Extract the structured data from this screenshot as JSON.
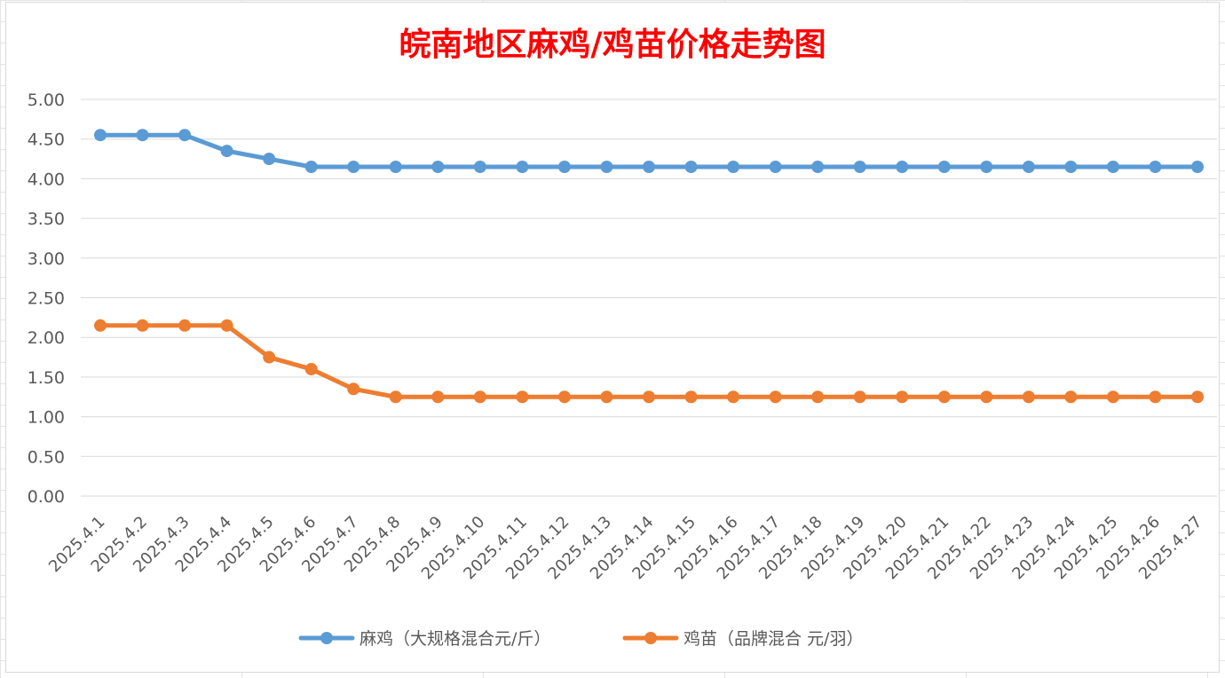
{
  "chart_data": {
    "type": "line",
    "title": "皖南地区麻鸡/鸡苗价格走势图",
    "xlabel": "",
    "ylabel": "",
    "ylim": [
      0,
      5
    ],
    "y_ticks": [
      "0.00",
      "0.50",
      "1.00",
      "1.50",
      "2.00",
      "2.50",
      "3.00",
      "3.50",
      "4.00",
      "4.50",
      "5.00"
    ],
    "grid": true,
    "legend_position": "bottom",
    "categories": [
      "2025.4.1",
      "2025.4.2",
      "2025.4.3",
      "2025.4.4",
      "2025.4.5",
      "2025.4.6",
      "2025.4.7",
      "2025.4.8",
      "2025.4.9",
      "2025.4.10",
      "2025.4.11",
      "2025.4.12",
      "2025.4.13",
      "2025.4.14",
      "2025.4.15",
      "2025.4.16",
      "2025.4.17",
      "2025.4.18",
      "2025.4.19",
      "2025.4.20",
      "2025.4.21",
      "2025.4.22",
      "2025.4.23",
      "2025.4.24",
      "2025.4.25",
      "2025.4.26",
      "2025.4.27"
    ],
    "series": [
      {
        "name": "麻鸡（大规格混合元/斤）",
        "color": "#5b9bd5",
        "values": [
          4.55,
          4.55,
          4.55,
          4.35,
          4.25,
          4.15,
          4.15,
          4.15,
          4.15,
          4.15,
          4.15,
          4.15,
          4.15,
          4.15,
          4.15,
          4.15,
          4.15,
          4.15,
          4.15,
          4.15,
          4.15,
          4.15,
          4.15,
          4.15,
          4.15,
          4.15,
          4.15
        ]
      },
      {
        "name": "鸡苗（品牌混合 元/羽）",
        "color": "#ed7d31",
        "values": [
          2.15,
          2.15,
          2.15,
          2.15,
          1.75,
          1.6,
          1.35,
          1.25,
          1.25,
          1.25,
          1.25,
          1.25,
          1.25,
          1.25,
          1.25,
          1.25,
          1.25,
          1.25,
          1.25,
          1.25,
          1.25,
          1.25,
          1.25,
          1.25,
          1.25,
          1.25,
          1.25
        ]
      }
    ]
  }
}
